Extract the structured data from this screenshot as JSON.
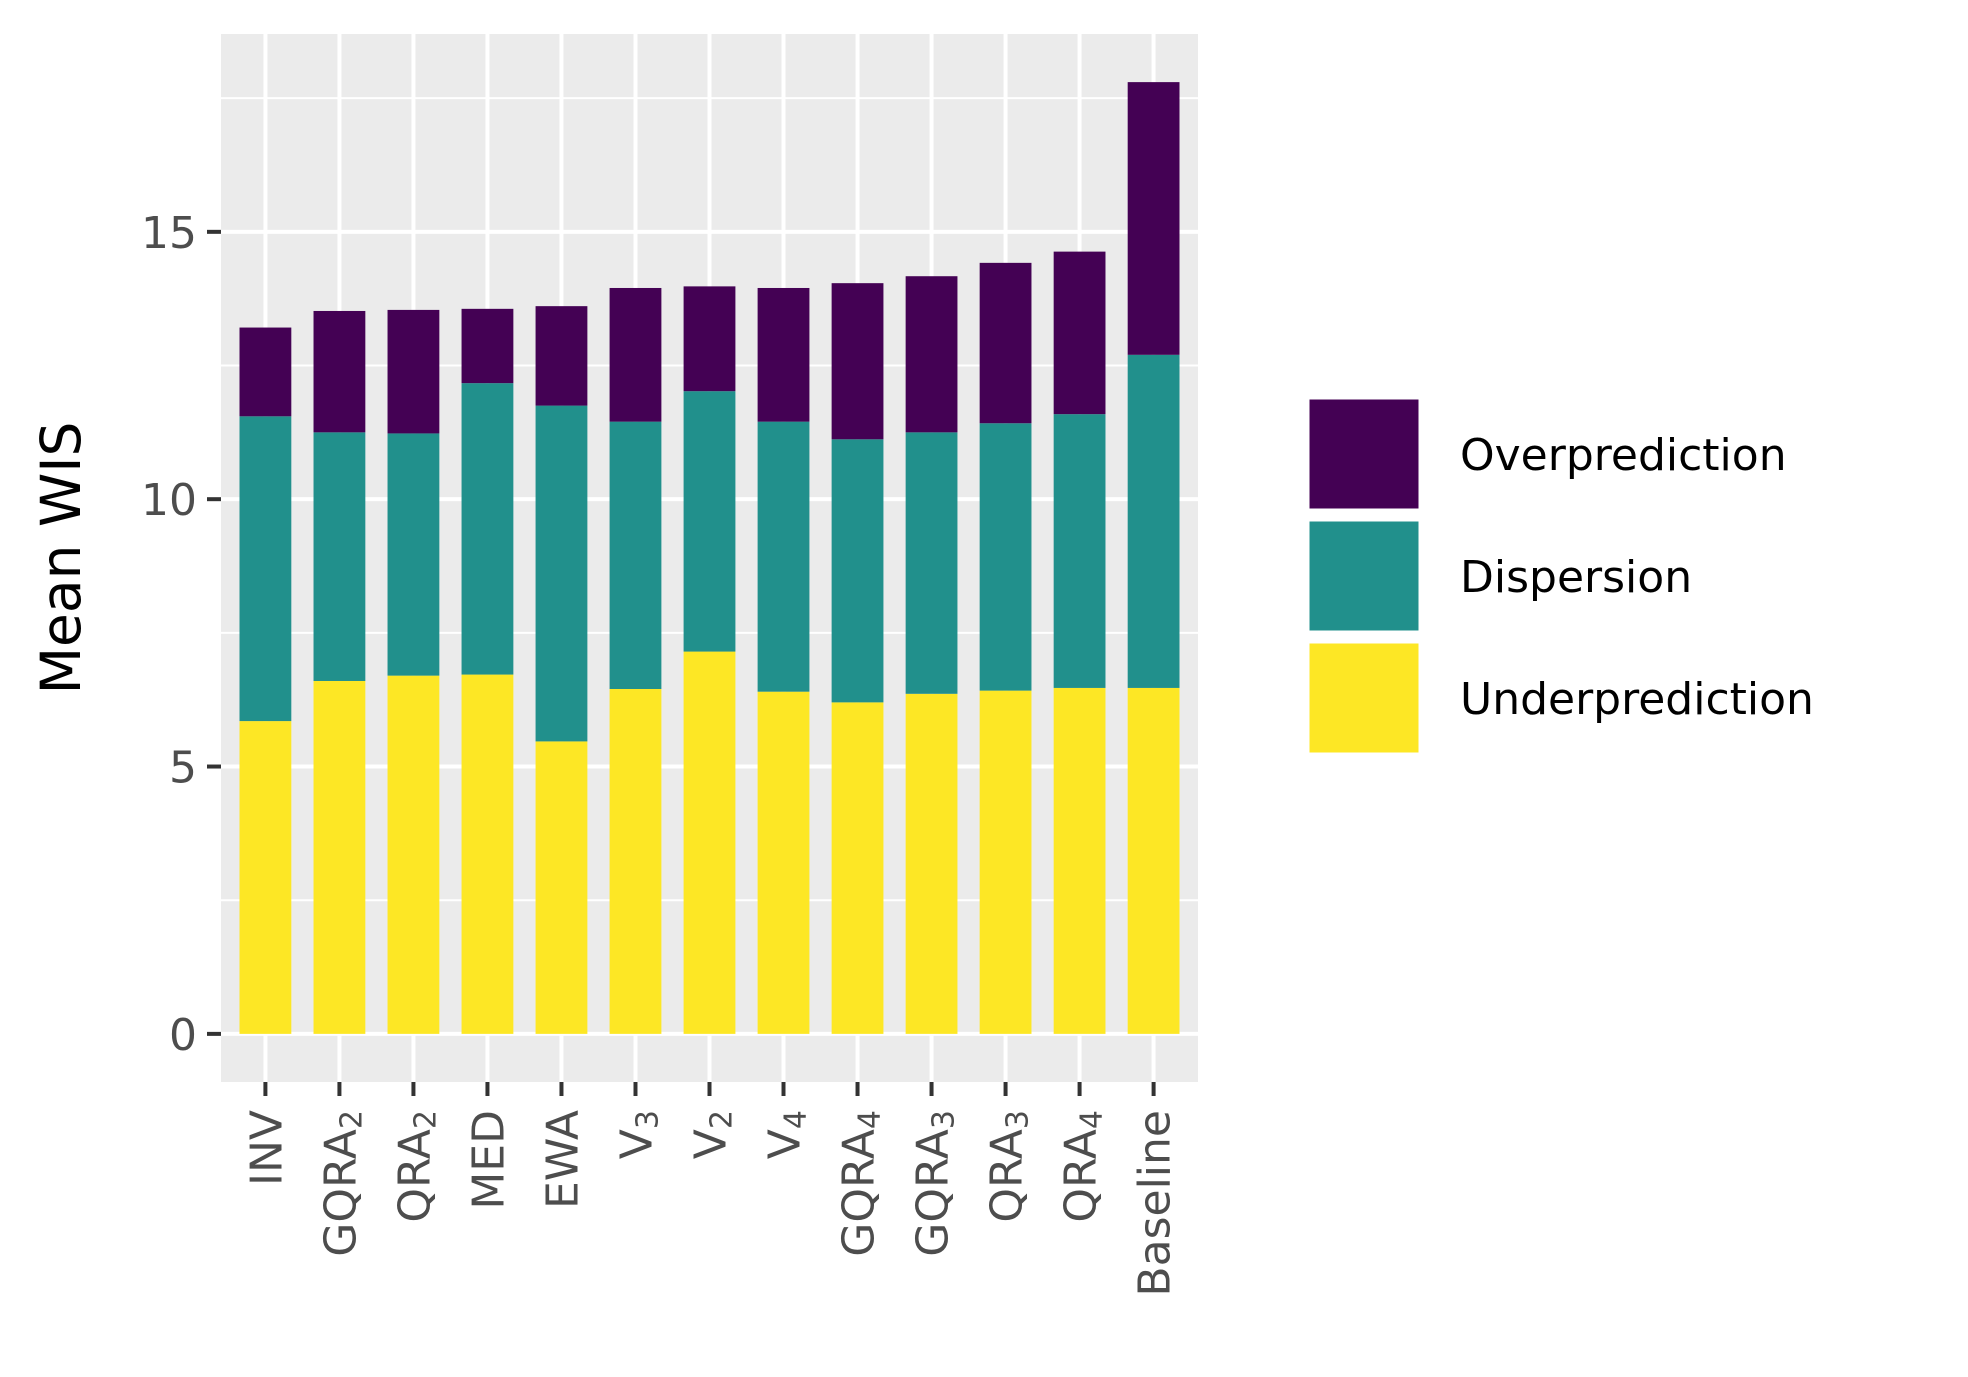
{
  "chart_data": {
    "type": "bar",
    "stacked": true,
    "title": "",
    "xlabel": "",
    "ylabel": "Mean WIS",
    "ylim": [
      -0.9,
      18.7
    ],
    "yticks": [
      0,
      5,
      10,
      15
    ],
    "grid": true,
    "legend_position": "right",
    "categories": [
      {
        "base": "INV",
        "sub": ""
      },
      {
        "base": "GQRA",
        "sub": "2"
      },
      {
        "base": "QRA",
        "sub": "2"
      },
      {
        "base": "MED",
        "sub": ""
      },
      {
        "base": "EWA",
        "sub": ""
      },
      {
        "base": "V",
        "sub": "3"
      },
      {
        "base": "V",
        "sub": "2"
      },
      {
        "base": "V",
        "sub": "4"
      },
      {
        "base": "GQRA",
        "sub": "4"
      },
      {
        "base": "GQRA",
        "sub": "3"
      },
      {
        "base": "QRA",
        "sub": "3"
      },
      {
        "base": "QRA",
        "sub": "4"
      },
      {
        "base": "Baseline",
        "sub": ""
      }
    ],
    "series": [
      {
        "name": "Underprediction",
        "color": "#FDE725",
        "values": [
          5.85,
          6.6,
          6.7,
          6.72,
          5.47,
          6.45,
          7.15,
          6.4,
          6.2,
          6.36,
          6.42,
          6.47,
          6.47
        ]
      },
      {
        "name": "Dispersion",
        "color": "#21908C",
        "values": [
          5.7,
          4.65,
          4.53,
          5.45,
          6.28,
          5.0,
          4.87,
          5.05,
          4.92,
          4.89,
          5.0,
          5.12,
          6.23
        ]
      },
      {
        "name": "Overprediction",
        "color": "#440154",
        "values": [
          1.66,
          2.27,
          2.31,
          1.39,
          1.86,
          2.5,
          1.96,
          2.5,
          2.92,
          2.92,
          3.0,
          3.04,
          5.1
        ]
      }
    ],
    "legend_order": [
      "Overprediction",
      "Dispersion",
      "Underprediction"
    ]
  }
}
